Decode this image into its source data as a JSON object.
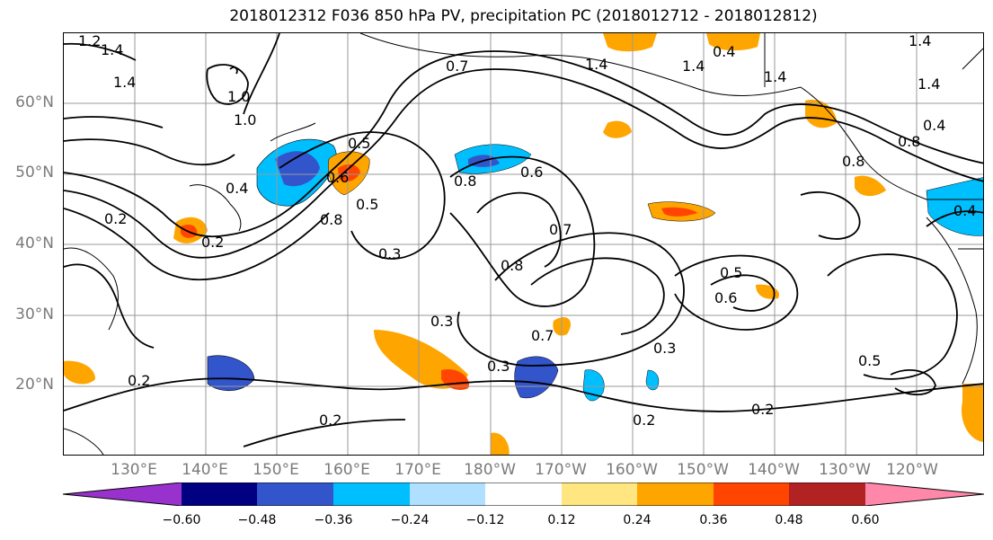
{
  "title": "2018012312 F036 850 hPa PV, precipitation PC (2018012712 - 2018012812)",
  "lat_labels": [
    "60°N",
    "50°N",
    "40°N",
    "30°N",
    "20°N"
  ],
  "lon_labels": [
    "130°E",
    "140°E",
    "150°E",
    "160°E",
    "170°E",
    "180°W",
    "170°W",
    "160°W",
    "150°W",
    "140°W",
    "130°W",
    "120°W"
  ],
  "contour_labels": [
    "1.2",
    "1.4",
    "1.4",
    "1.0",
    "1.0",
    "0.5",
    "0.4",
    "0.2",
    "0.6",
    "0.8",
    "0.5",
    "0.3",
    "0.8",
    "0.6",
    "0.7",
    "0.8",
    "0.3",
    "0.7",
    "0.3",
    "0.5",
    "0.6",
    "0.2",
    "0.2",
    "0.3",
    "0.2",
    "0.2",
    "1.4",
    "0.7",
    "1.4",
    "1.4",
    "0.4",
    "1.4",
    "0.8",
    "0.4",
    "0.8",
    "1.4",
    "0.4",
    "0.5",
    "0.2"
  ],
  "colorbar": {
    "ticks": [
      "−0.60",
      "−0.48",
      "−0.36",
      "−0.24",
      "−0.12",
      "0.12",
      "0.24",
      "0.36",
      "0.48",
      "0.60"
    ],
    "colors": [
      "#9932cc",
      "#000080",
      "#3355cc",
      "#00bfff",
      "#b0e0ff",
      "#ffffff",
      "#ffe680",
      "#ffa500",
      "#ff4500",
      "#b22222",
      "#ff88aa"
    ]
  }
}
